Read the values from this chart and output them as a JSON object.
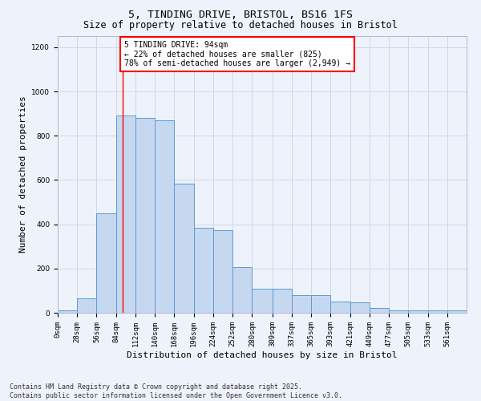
{
  "title": "5, TINDING DRIVE, BRISTOL, BS16 1FS",
  "subtitle": "Size of property relative to detached houses in Bristol",
  "xlabel": "Distribution of detached houses by size in Bristol",
  "ylabel": "Number of detached properties",
  "bar_values": [
    10,
    65,
    450,
    890,
    880,
    870,
    585,
    385,
    375,
    205,
    110,
    110,
    80,
    80,
    50,
    48,
    22,
    12,
    12,
    12,
    10
  ],
  "bin_edges": [
    0,
    28,
    56,
    84,
    112,
    140,
    168,
    196,
    224,
    252,
    280,
    309,
    337,
    365,
    393,
    421,
    449,
    477,
    505,
    533,
    561,
    589
  ],
  "tick_labels": [
    "0sqm",
    "28sqm",
    "56sqm",
    "84sqm",
    "112sqm",
    "140sqm",
    "168sqm",
    "196sqm",
    "224sqm",
    "252sqm",
    "280sqm",
    "309sqm",
    "337sqm",
    "365sqm",
    "393sqm",
    "421sqm",
    "449sqm",
    "477sqm",
    "505sqm",
    "533sqm",
    "561sqm"
  ],
  "bar_color": "#c5d8f0",
  "bar_edge_color": "#5b9bd5",
  "grid_color": "#d0d8e8",
  "background_color": "#eef2fb",
  "vline_x": 94,
  "vline_color": "red",
  "annotation_text": "5 TINDING DRIVE: 94sqm\n← 22% of detached houses are smaller (825)\n78% of semi-detached houses are larger (2,949) →",
  "annotation_box_color": "#ffffff",
  "annotation_box_edge": "red",
  "footer_text": "Contains HM Land Registry data © Crown copyright and database right 2025.\nContains public sector information licensed under the Open Government Licence v3.0.",
  "ylim": [
    0,
    1250
  ],
  "title_fontsize": 9.5,
  "subtitle_fontsize": 8.5,
  "axis_label_fontsize": 8,
  "tick_fontsize": 6.5,
  "annotation_fontsize": 7,
  "footer_fontsize": 6
}
